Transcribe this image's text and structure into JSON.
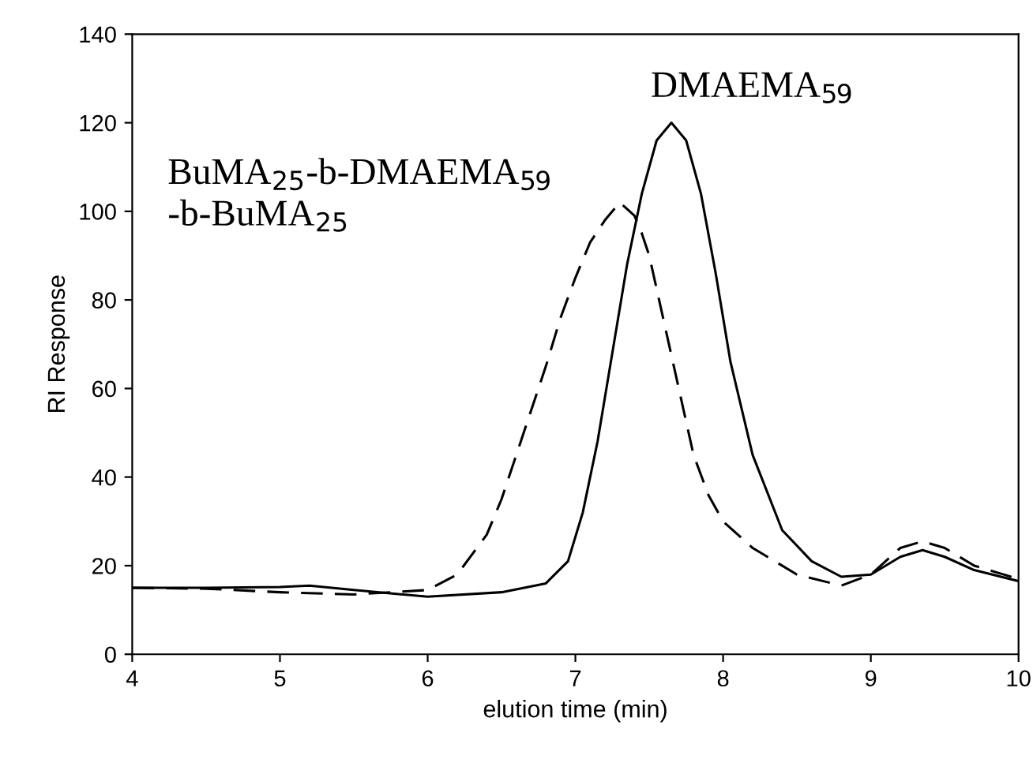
{
  "chart_data": {
    "type": "line",
    "xlabel": "elution time (min)",
    "ylabel": "RI Response",
    "xlim": [
      4,
      10
    ],
    "ylim": [
      0,
      140
    ],
    "xticks": [
      4,
      5,
      6,
      7,
      8,
      9,
      10
    ],
    "yticks": [
      0,
      20,
      40,
      60,
      80,
      100,
      120,
      140
    ],
    "grid": false,
    "legend": false,
    "marker": "none",
    "series": [
      {
        "name": "BuMA$_{25}$-b-DMAEMA$_{59}$\n-b-BuMA$_{25}$",
        "color": "#000000",
        "line_style": "dashed",
        "x": [
          4,
          4.5,
          5,
          5.5,
          6,
          6.2,
          6.4,
          6.5,
          6.65,
          6.8,
          6.9,
          7.0,
          7.1,
          7.2,
          7.3,
          7.4,
          7.45,
          7.5,
          7.6,
          7.7,
          7.8,
          7.9,
          8.0,
          8.2,
          8.5,
          8.8,
          9.0,
          9.2,
          9.35,
          9.5,
          9.7,
          10
        ],
        "values": [
          15,
          14.8,
          14,
          13.5,
          14.5,
          18,
          27,
          35,
          50,
          65,
          76,
          85,
          93,
          98,
          102,
          99,
          95,
          90,
          75,
          60,
          45,
          36,
          30,
          24,
          18,
          15.5,
          18,
          24,
          25.5,
          24,
          20,
          17
        ]
      },
      {
        "name": "DMAEMA$_{59}$",
        "color": "#000000",
        "line_style": "solid",
        "x": [
          4,
          4.5,
          5,
          5.2,
          5.5,
          6,
          6.5,
          6.8,
          6.95,
          7.05,
          7.15,
          7.25,
          7.35,
          7.45,
          7.55,
          7.65,
          7.75,
          7.85,
          7.95,
          8.05,
          8.2,
          8.4,
          8.6,
          8.8,
          9.0,
          9.2,
          9.35,
          9.5,
          9.7,
          10
        ],
        "values": [
          15,
          15,
          15.2,
          15.5,
          14.5,
          13,
          14,
          16,
          21,
          32,
          48,
          68,
          88,
          104,
          116,
          120,
          116,
          104,
          86,
          66,
          45,
          28,
          21,
          17.5,
          18,
          22,
          23.5,
          22,
          19,
          16.5
        ]
      }
    ]
  }
}
